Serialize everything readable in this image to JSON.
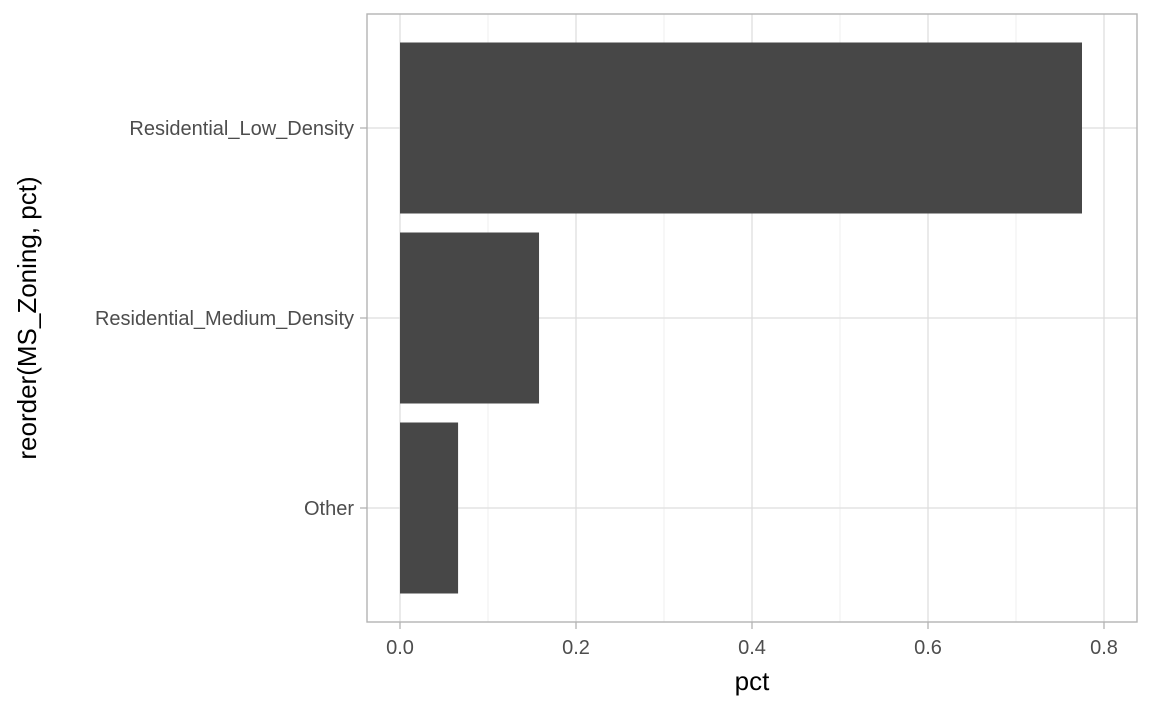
{
  "chart_data": {
    "type": "bar",
    "orientation": "horizontal",
    "categories": [
      "Residential_Low_Density",
      "Residential_Medium_Density",
      "Other"
    ],
    "values": [
      0.775,
      0.158,
      0.066
    ],
    "xlabel": "pct",
    "ylabel": "reorder(MS_Zoning, pct)",
    "xlim": [
      -0.0375,
      0.8375
    ],
    "xticks": [
      0.0,
      0.2,
      0.4,
      0.6,
      0.8
    ],
    "xtick_labels": [
      "0.0",
      "0.2",
      "0.4",
      "0.6",
      "0.8"
    ],
    "grid": true,
    "legend": "none",
    "colors": {
      "bar": "#474747",
      "grid_major": "#dedede",
      "grid_minor": "#efefef",
      "panel_border": "#b3b3b3",
      "tick_mark": "#b3b3b3"
    }
  }
}
